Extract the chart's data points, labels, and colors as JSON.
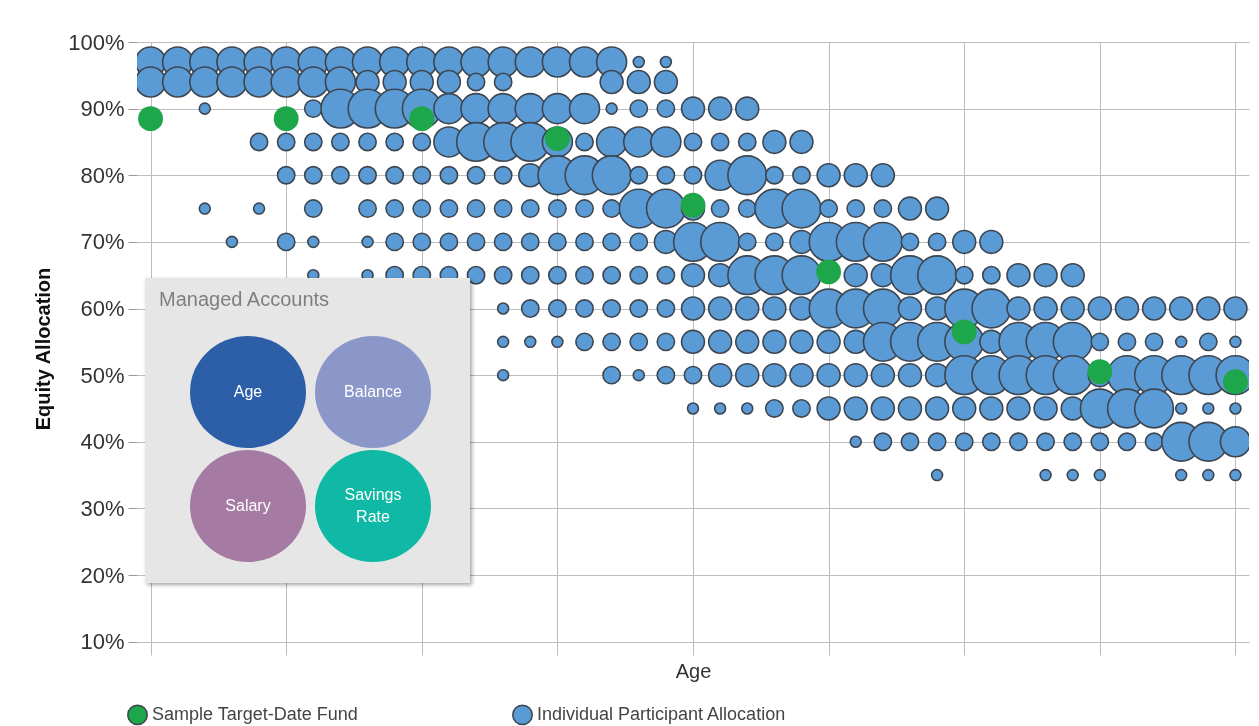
{
  "chart_data": {
    "type": "bubble",
    "ylabel": "Equity Allocation",
    "xlabel": "Age",
    "categories": [
      null,
      null,
      null,
      null,
      null,
      null,
      null,
      null,
      null,
      null,
      null,
      null,
      null,
      null,
      null,
      null,
      null,
      null,
      null,
      null,
      null,
      null,
      null,
      null,
      null,
      null,
      null,
      null,
      null,
      null,
      null,
      null,
      null,
      null,
      null,
      null,
      null,
      null,
      null,
      null,
      null
    ],
    "ylim": [
      8,
      100
    ],
    "yticks": [
      {
        "value": 10,
        "label": "10%"
      },
      {
        "value": 20,
        "label": "20%"
      },
      {
        "value": 30,
        "label": "30%"
      },
      {
        "value": 40,
        "label": "40%"
      },
      {
        "value": 50,
        "label": "50%"
      },
      {
        "value": 60,
        "label": "60%"
      },
      {
        "value": 70,
        "label": "70%"
      },
      {
        "value": 80,
        "label": "80%"
      },
      {
        "value": 90,
        "label": "90%"
      },
      {
        "value": 100,
        "label": "100%"
      }
    ],
    "grid": true,
    "legend": "bottom left",
    "tick_labels": "y",
    "annotations": [
      "Managed Accounts",
      "Age",
      "Balance",
      "Salary",
      "Savings Rate"
    ],
    "series": [
      {
        "name": "Sample Target-Date Fund",
        "type": "scatter",
        "color": "#1ea64a",
        "values": [
          88.5,
          null,
          null,
          null,
          null,
          88.5,
          null,
          null,
          null,
          null,
          88.5,
          null,
          null,
          null,
          null,
          85.5,
          null,
          null,
          null,
          null,
          75.5,
          null,
          null,
          null,
          null,
          65.5,
          null,
          null,
          null,
          null,
          56.5,
          null,
          null,
          null,
          null,
          50.5,
          null,
          null,
          null,
          null,
          49
        ]
      },
      {
        "name": "Individual Participant Allocation",
        "color": "#5b9bd5",
        "values": [
          97,
          97,
          97,
          97,
          97,
          97,
          97,
          97,
          97,
          97,
          97,
          97,
          97,
          97,
          97,
          97,
          97,
          97,
          97,
          97,
          null,
          null,
          null,
          null,
          null,
          null,
          null,
          null,
          null,
          null,
          null,
          null,
          null,
          null,
          null,
          null,
          null,
          null,
          null,
          null,
          null
        ],
        "sizes": [
          0.6,
          0.6,
          0.6,
          0.6,
          0.6,
          0.6,
          0.6,
          0.6,
          0.6,
          0.6,
          0.6,
          0.6,
          0.6,
          0.6,
          0.6,
          0.6,
          0.6,
          0.6,
          0.08,
          0.08,
          null,
          null,
          null,
          null,
          null,
          null,
          null,
          null,
          null,
          null,
          null,
          null,
          null,
          null,
          null,
          null,
          null,
          null,
          null,
          null,
          null
        ]
      },
      {
        "color": "#5b9bd5",
        "values": [
          94,
          94,
          94,
          94,
          94,
          94,
          94,
          94,
          94,
          94,
          94,
          94,
          94,
          94,
          null,
          null,
          null,
          94,
          94,
          94,
          null,
          null,
          null,
          null,
          null,
          null,
          null,
          null,
          null,
          null,
          null,
          null,
          null,
          null,
          null,
          null,
          null,
          null,
          null,
          null,
          null
        ],
        "sizes": [
          0.6,
          0.6,
          0.6,
          0.6,
          0.6,
          0.6,
          0.6,
          0.6,
          0.35,
          0.35,
          0.35,
          0.35,
          0.2,
          0.2,
          null,
          null,
          null,
          0.35,
          0.35,
          0.35,
          null,
          null,
          null,
          null,
          null,
          null,
          null,
          null,
          null,
          null,
          null,
          null,
          null,
          null,
          null,
          null,
          null,
          null,
          null,
          null,
          null
        ]
      },
      {
        "color": "#5b9bd5",
        "values": [
          null,
          null,
          90,
          null,
          null,
          null,
          90,
          90,
          90,
          90,
          90,
          90,
          90,
          90,
          90,
          90,
          90,
          90,
          90,
          90,
          90,
          90,
          90,
          null,
          null,
          null,
          null,
          null,
          null,
          null,
          null,
          null,
          null,
          null,
          null,
          null,
          null,
          null,
          null,
          null,
          null
        ],
        "sizes": [
          null,
          null,
          0.08,
          null,
          null,
          null,
          0.2,
          1,
          1,
          1,
          1,
          0.6,
          0.6,
          0.6,
          0.6,
          0.6,
          0.6,
          0.08,
          0.2,
          0.2,
          0.35,
          0.35,
          0.35,
          null,
          null,
          null,
          null,
          null,
          null,
          null,
          null,
          null,
          null,
          null,
          null,
          null,
          null,
          null,
          null,
          null,
          null
        ]
      },
      {
        "color": "#5b9bd5",
        "values": [
          null,
          null,
          null,
          null,
          85,
          85,
          85,
          85,
          85,
          85,
          85,
          85,
          85,
          85,
          85,
          85,
          85,
          85,
          85,
          85,
          85,
          85,
          85,
          85,
          85,
          null,
          null,
          null,
          null,
          null,
          null,
          null,
          null,
          null,
          null,
          null,
          null,
          null,
          null,
          null,
          null
        ],
        "sizes": [
          null,
          null,
          null,
          null,
          0.2,
          0.2,
          0.2,
          0.2,
          0.2,
          0.2,
          0.2,
          0.6,
          1,
          1,
          1,
          0.6,
          0.2,
          0.6,
          0.6,
          0.6,
          0.2,
          0.2,
          0.2,
          0.35,
          0.35,
          null,
          null,
          null,
          null,
          null,
          null,
          null,
          null,
          null,
          null,
          null,
          null,
          null,
          null,
          null,
          null
        ]
      },
      {
        "color": "#5b9bd5",
        "values": [
          null,
          null,
          null,
          null,
          null,
          80,
          80,
          80,
          80,
          80,
          80,
          80,
          80,
          80,
          80,
          80,
          80,
          80,
          80,
          80,
          80,
          80,
          80,
          80,
          80,
          80,
          80,
          80,
          null,
          null,
          null,
          null,
          null,
          null,
          null,
          null,
          null,
          null,
          null,
          null,
          null
        ],
        "sizes": [
          null,
          null,
          null,
          null,
          null,
          0.2,
          0.2,
          0.2,
          0.2,
          0.2,
          0.2,
          0.2,
          0.2,
          0.2,
          0.35,
          1,
          1,
          1,
          0.2,
          0.2,
          0.2,
          0.6,
          1,
          0.2,
          0.2,
          0.35,
          0.35,
          0.35,
          null,
          null,
          null,
          null,
          null,
          null,
          null,
          null,
          null,
          null,
          null,
          null,
          null
        ]
      },
      {
        "color": "#5b9bd5",
        "values": [
          null,
          null,
          75,
          null,
          75,
          null,
          75,
          null,
          75,
          75,
          75,
          75,
          75,
          75,
          75,
          75,
          75,
          75,
          75,
          75,
          75,
          75,
          75,
          75,
          75,
          75,
          75,
          75,
          75,
          75,
          null,
          null,
          null,
          null,
          null,
          null,
          null,
          null,
          null,
          null,
          null
        ],
        "sizes": [
          null,
          null,
          0.08,
          null,
          0.08,
          null,
          0.2,
          null,
          0.2,
          0.2,
          0.2,
          0.2,
          0.2,
          0.2,
          0.2,
          0.2,
          0.2,
          0.2,
          1,
          1,
          0.35,
          0.2,
          0.2,
          1,
          1,
          0.2,
          0.2,
          0.2,
          0.35,
          0.35,
          null,
          null,
          null,
          null,
          null,
          null,
          null,
          null,
          null,
          null,
          null
        ]
      },
      {
        "color": "#5b9bd5",
        "values": [
          null,
          null,
          null,
          70,
          null,
          70,
          70,
          null,
          70,
          70,
          70,
          70,
          70,
          70,
          70,
          70,
          70,
          70,
          70,
          70,
          70,
          70,
          70,
          70,
          70,
          70,
          70,
          70,
          70,
          70,
          70,
          70,
          null,
          null,
          null,
          null,
          null,
          null,
          null,
          null,
          null
        ],
        "sizes": [
          null,
          null,
          null,
          0.08,
          null,
          0.2,
          0.08,
          null,
          0.08,
          0.2,
          0.2,
          0.2,
          0.2,
          0.2,
          0.2,
          0.2,
          0.2,
          0.2,
          0.2,
          0.35,
          1,
          1,
          0.2,
          0.2,
          0.35,
          1,
          1,
          1,
          0.2,
          0.2,
          0.35,
          0.35,
          null,
          null,
          null,
          null,
          null,
          null,
          null,
          null,
          null
        ]
      },
      {
        "color": "#5b9bd5",
        "values": [
          null,
          null,
          null,
          null,
          null,
          null,
          65,
          null,
          65,
          65,
          65,
          65,
          65,
          65,
          65,
          65,
          65,
          65,
          65,
          65,
          65,
          65,
          65,
          65,
          65,
          null,
          65,
          65,
          65,
          65,
          65,
          65,
          65,
          65,
          65,
          null,
          null,
          null,
          null,
          null,
          null
        ],
        "sizes": [
          null,
          null,
          null,
          null,
          null,
          null,
          0.08,
          null,
          0.08,
          0.2,
          0.2,
          0.2,
          0.2,
          0.2,
          0.2,
          0.2,
          0.2,
          0.2,
          0.2,
          0.2,
          0.35,
          0.35,
          1,
          1,
          1,
          null,
          0.35,
          0.35,
          1,
          1,
          0.2,
          0.2,
          0.35,
          0.35,
          0.35,
          null,
          null,
          null,
          null,
          null,
          null
        ]
      },
      {
        "color": "#5b9bd5",
        "values": [
          null,
          null,
          null,
          null,
          null,
          null,
          null,
          null,
          null,
          null,
          null,
          null,
          null,
          60,
          60,
          60,
          60,
          60,
          60,
          60,
          60,
          60,
          60,
          60,
          60,
          60,
          60,
          60,
          60,
          60,
          60,
          60,
          60,
          60,
          60,
          60,
          60,
          60,
          60,
          60,
          60
        ],
        "sizes": [
          null,
          null,
          null,
          null,
          null,
          null,
          null,
          null,
          null,
          null,
          null,
          null,
          null,
          0.08,
          0.2,
          0.2,
          0.2,
          0.2,
          0.2,
          0.2,
          0.35,
          0.35,
          0.35,
          0.35,
          0.35,
          1,
          1,
          1,
          0.35,
          0.35,
          1,
          1,
          0.35,
          0.35,
          0.35,
          0.35,
          0.35,
          0.35,
          0.35,
          0.35,
          0.35
        ]
      },
      {
        "color": "#5b9bd5",
        "values": [
          null,
          null,
          null,
          null,
          null,
          null,
          null,
          null,
          null,
          null,
          null,
          null,
          null,
          55,
          55,
          55,
          55,
          55,
          55,
          55,
          55,
          55,
          55,
          55,
          55,
          55,
          55,
          55,
          55,
          55,
          55,
          55,
          55,
          55,
          55,
          55,
          55,
          55,
          55,
          55,
          55
        ],
        "sizes": [
          null,
          null,
          null,
          null,
          null,
          null,
          null,
          null,
          null,
          null,
          null,
          null,
          null,
          0.08,
          0.08,
          0.08,
          0.2,
          0.2,
          0.2,
          0.2,
          0.35,
          0.35,
          0.35,
          0.35,
          0.35,
          0.35,
          0.35,
          1,
          1,
          1,
          1,
          0.35,
          1,
          1,
          1,
          0.2,
          0.2,
          0.2,
          0.08,
          0.2,
          0.08
        ]
      },
      {
        "color": "#5b9bd5",
        "values": [
          null,
          null,
          null,
          null,
          null,
          null,
          null,
          null,
          null,
          null,
          null,
          null,
          null,
          50,
          null,
          null,
          null,
          50,
          50,
          50,
          50,
          50,
          50,
          50,
          50,
          50,
          50,
          50,
          50,
          50,
          50,
          50,
          50,
          50,
          50,
          50,
          50,
          50,
          50,
          50,
          50
        ],
        "sizes": [
          null,
          null,
          null,
          null,
          null,
          null,
          null,
          null,
          null,
          null,
          null,
          null,
          null,
          0.08,
          null,
          null,
          null,
          0.2,
          0.08,
          0.2,
          0.2,
          0.35,
          0.35,
          0.35,
          0.35,
          0.35,
          0.35,
          0.35,
          0.35,
          0.35,
          1,
          1,
          1,
          1,
          1,
          0.35,
          1,
          1,
          1,
          1,
          1
        ]
      },
      {
        "color": "#5b9bd5",
        "values": [
          null,
          null,
          null,
          null,
          null,
          null,
          null,
          null,
          null,
          null,
          null,
          null,
          null,
          null,
          null,
          null,
          null,
          null,
          null,
          null,
          45,
          45,
          45,
          45,
          45,
          45,
          45,
          45,
          45,
          45,
          45,
          45,
          45,
          45,
          45,
          45,
          45,
          45,
          45,
          45,
          45
        ],
        "sizes": [
          null,
          null,
          null,
          null,
          null,
          null,
          null,
          null,
          null,
          null,
          null,
          null,
          null,
          null,
          null,
          null,
          null,
          null,
          null,
          null,
          0.08,
          0.08,
          0.08,
          0.2,
          0.2,
          0.35,
          0.35,
          0.35,
          0.35,
          0.35,
          0.35,
          0.35,
          0.35,
          0.35,
          0.35,
          1,
          1,
          1,
          0.08,
          0.08,
          0.08
        ]
      },
      {
        "color": "#5b9bd5",
        "values": [
          null,
          null,
          null,
          null,
          null,
          null,
          null,
          null,
          null,
          null,
          null,
          null,
          null,
          null,
          null,
          null,
          null,
          null,
          null,
          null,
          null,
          null,
          null,
          null,
          null,
          null,
          40,
          40,
          40,
          40,
          40,
          40,
          40,
          40,
          40,
          40,
          40,
          40,
          40,
          40,
          40
        ],
        "sizes": [
          null,
          null,
          null,
          null,
          null,
          null,
          null,
          null,
          null,
          null,
          null,
          null,
          null,
          null,
          null,
          null,
          null,
          null,
          null,
          null,
          null,
          null,
          null,
          null,
          null,
          null,
          0.08,
          0.2,
          0.2,
          0.2,
          0.2,
          0.2,
          0.2,
          0.2,
          0.2,
          0.2,
          0.2,
          0.2,
          1,
          1,
          0.6
        ]
      },
      {
        "color": "#5b9bd5",
        "values": [
          null,
          null,
          null,
          null,
          null,
          null,
          null,
          null,
          null,
          null,
          null,
          null,
          null,
          null,
          null,
          null,
          null,
          null,
          null,
          null,
          null,
          null,
          null,
          null,
          null,
          null,
          null,
          null,
          null,
          35,
          null,
          null,
          null,
          35,
          35,
          35,
          null,
          null,
          35,
          35,
          35
        ],
        "sizes": [
          null,
          null,
          null,
          null,
          null,
          null,
          null,
          null,
          null,
          null,
          null,
          null,
          null,
          null,
          null,
          null,
          null,
          null,
          null,
          null,
          null,
          null,
          null,
          null,
          null,
          null,
          null,
          null,
          null,
          0.08,
          null,
          null,
          null,
          0.08,
          0.08,
          0.08,
          null,
          null,
          0.08,
          0.08,
          0.08
        ]
      }
    ]
  }
}
